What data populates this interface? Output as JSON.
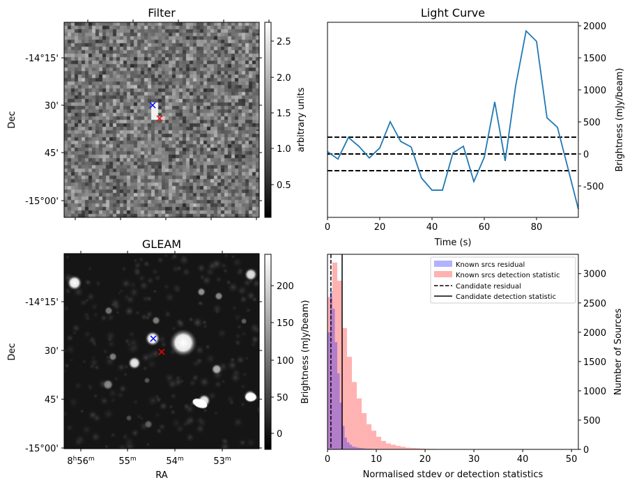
{
  "chart_data": [
    {
      "type": "heatmap",
      "title": "Filter",
      "xlabel": "",
      "ylabel": "Dec",
      "ytick_labels": [
        "-14°15'",
        "30'",
        "45'",
        "-15°00'"
      ],
      "colorbar": {
        "label": "arbitrary units",
        "range": [
          0.05,
          2.75
        ],
        "ticks": [
          "0.5",
          "1.0",
          "1.5",
          "2.0",
          "2.5"
        ]
      },
      "colormap": "gray",
      "markers": [
        {
          "name": "blue cross",
          "color": "#0000ff"
        },
        {
          "name": "red cross",
          "color": "#ff0000"
        }
      ]
    },
    {
      "type": "line",
      "title": "Light Curve",
      "xlabel": "Time (s)",
      "ylabel": "Brightness (mJy/beam)",
      "xlim": [
        0,
        96
      ],
      "ylim": [
        -990,
        2055
      ],
      "xticks": [
        "0",
        "20",
        "40",
        "60",
        "80"
      ],
      "yticks": [
        "-500",
        "0",
        "500",
        "1000",
        "1500",
        "2000"
      ],
      "x": [
        0,
        4,
        8,
        12,
        16,
        20,
        24,
        28,
        32,
        36,
        40,
        44,
        48,
        52,
        56,
        60,
        64,
        68,
        72,
        76,
        80,
        84,
        88,
        92,
        96
      ],
      "y": [
        36,
        -80,
        257,
        120,
        -62,
        94,
        503,
        196,
        109,
        -377,
        -565,
        -565,
        14,
        120,
        -431,
        -51,
        812,
        -109,
        1060,
        1920,
        1757,
        565,
        416,
        -220,
        -860
      ],
      "line_color": "#1f77b4",
      "hlines": [
        {
          "y": 262,
          "style": "dashed"
        },
        {
          "y": 0,
          "style": "dashed"
        },
        {
          "y": -262,
          "style": "dashed"
        }
      ]
    },
    {
      "type": "heatmap",
      "title": "GLEAM",
      "xlabel": "RA",
      "ylabel": "Dec",
      "xtick_labels": [
        {
          "h": "8",
          "hs": "h",
          "m": "56",
          "ms": "m"
        },
        {
          "h": "",
          "hs": "",
          "m": "55",
          "ms": "m"
        },
        {
          "h": "",
          "hs": "",
          "m": "54",
          "ms": "m"
        },
        {
          "h": "",
          "hs": "",
          "m": "53",
          "ms": "m"
        }
      ],
      "ytick_labels": [
        "-14°15'",
        "30'",
        "45'",
        "-15°00'"
      ],
      "colorbar": {
        "label": "Brightness (mJy/beam)",
        "range": [
          -22,
          240
        ],
        "ticks": [
          "0",
          "50",
          "100",
          "150",
          "200"
        ]
      },
      "colormap": "gray",
      "markers": [
        {
          "name": "blue cross",
          "color": "#0000ff"
        },
        {
          "name": "red cross",
          "color": "#ff0000"
        }
      ]
    },
    {
      "type": "bar",
      "title": "",
      "xlabel": "Normalised stdev or detection statistics",
      "ylabel": "Number of Sources",
      "xlim": [
        0,
        51.4
      ],
      "ylim": [
        0,
        3330
      ],
      "xticks": [
        "0",
        "10",
        "20",
        "30",
        "40",
        "50"
      ],
      "yticks": [
        "0",
        "500",
        "1000",
        "1500",
        "2000",
        "2500",
        "3000"
      ],
      "legend_position": "top-right",
      "series": [
        {
          "name": "Known srcs residual",
          "color": "#0000ff",
          "alpha": 0.3,
          "bin_width": 0.5,
          "bin_start": 0,
          "values": [
            2000,
            2700,
            2400,
            1830,
            1300,
            800,
            400,
            200,
            120,
            80,
            50,
            40,
            30,
            25,
            20,
            15,
            12,
            10,
            8,
            5
          ]
        },
        {
          "name": "Known srcs detection statistic",
          "color": "#ff0000",
          "alpha": 0.3,
          "bin_width": 1,
          "bin_start": 0,
          "values": [
            2600,
            3190,
            2880,
            2070,
            1580,
            1150,
            870,
            620,
            430,
            320,
            215,
            145,
            100,
            80,
            60,
            45,
            30,
            25,
            20,
            15,
            10,
            8,
            6,
            5,
            5,
            4,
            4,
            3,
            3,
            3,
            3,
            3,
            2,
            2,
            2,
            2,
            2,
            2,
            2,
            1,
            1,
            1,
            1,
            1,
            1,
            1,
            1,
            1,
            1
          ]
        }
      ],
      "vlines": [
        {
          "name": "Candidate residual",
          "x": 0.7,
          "style": "dashed"
        },
        {
          "name": "Candidate detection statistic",
          "x": 3.0,
          "style": "solid"
        }
      ]
    }
  ]
}
